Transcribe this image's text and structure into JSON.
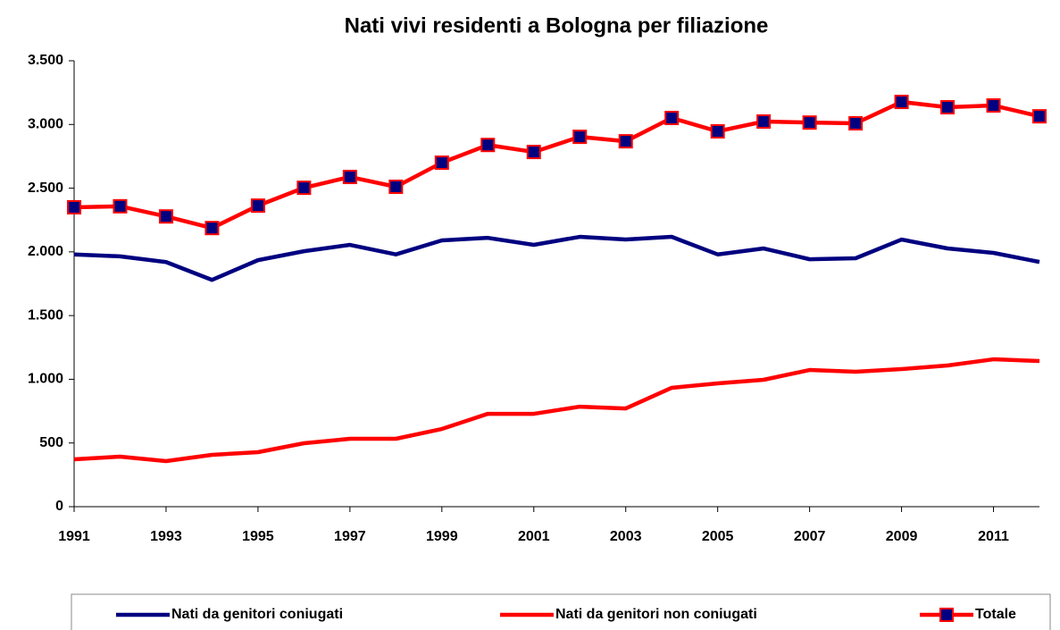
{
  "chart_data": {
    "type": "line",
    "title": "Nati vivi residenti a Bologna per filiazione",
    "x": [
      1991,
      1992,
      1993,
      1994,
      1995,
      1996,
      1997,
      1998,
      1999,
      2000,
      2001,
      2002,
      2003,
      2004,
      2005,
      2006,
      2007,
      2008,
      2009,
      2010,
      2011,
      2012
    ],
    "xlim": [
      1991,
      2012
    ],
    "xticks": [
      1991,
      1993,
      1995,
      1997,
      1999,
      2001,
      2003,
      2005,
      2007,
      2009,
      2011
    ],
    "ylim": [
      0,
      3500
    ],
    "yticks": [
      0,
      500,
      {
        "value": 1000,
        "label": "1.000"
      },
      {
        "value": 1500,
        "label": "1.500"
      },
      {
        "value": 2000,
        "label": "2.000"
      },
      {
        "value": 2500,
        "label": "2.500"
      },
      {
        "value": 3000,
        "label": "3.000"
      },
      {
        "value": 3500,
        "label": "3.500"
      }
    ],
    "legend": "bottom",
    "series": [
      {
        "name": "Nati da genitori coniugati",
        "color": "#000080",
        "values": [
          1980,
          1965,
          1920,
          1780,
          1935,
          2005,
          2055,
          1980,
          2090,
          2110,
          2055,
          2118,
          2097,
          2118,
          1980,
          2027,
          1942,
          1950,
          2097,
          2027,
          1992,
          1921
        ]
      },
      {
        "name": "Nati da genitori non coniugati",
        "color": "#ff0000",
        "values": [
          372,
          393,
          358,
          407,
          428,
          498,
          533,
          533,
          610,
          729,
          729,
          785,
          771,
          933,
          968,
          996,
          1073,
          1059,
          1080,
          1108,
          1157,
          1143
        ]
      },
      {
        "name": "Totale",
        "color": "#ff0000",
        "marker_color": "#000080",
        "values": [
          2350,
          2358,
          2278,
          2187,
          2363,
          2503,
          2588,
          2511,
          2700,
          2839,
          2784,
          2903,
          2868,
          3051,
          2946,
          3023,
          3015,
          3009,
          3177,
          3135,
          3149,
          3064
        ]
      }
    ]
  }
}
